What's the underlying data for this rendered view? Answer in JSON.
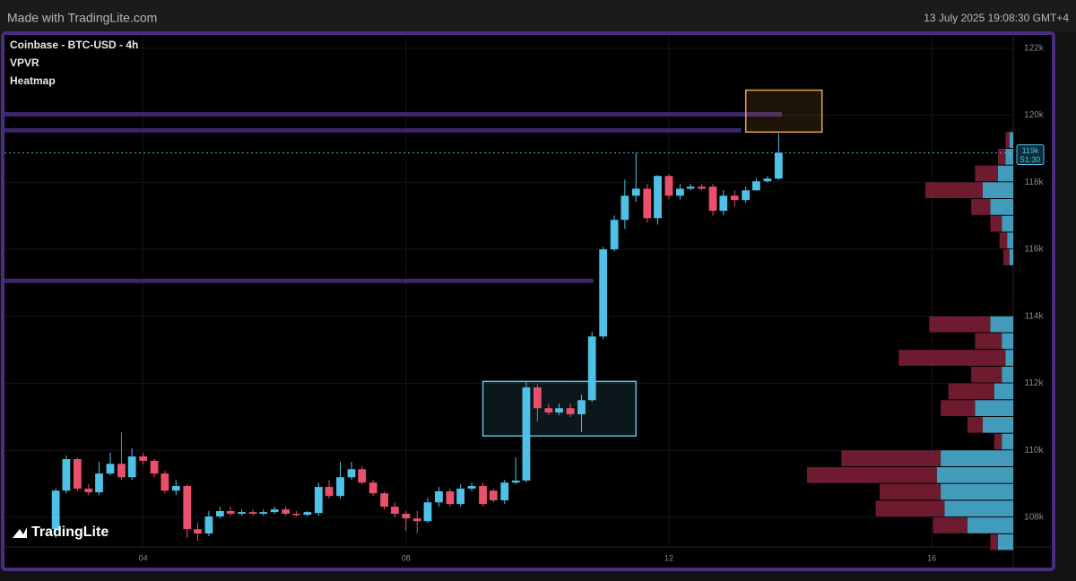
{
  "header": {
    "brand": "Made with TradingLite.com",
    "timestamp": "13 July 2025 19:08:30 GMT+4"
  },
  "chart_data": {
    "type": "candlestick",
    "title": "Coinbase - BTC-USD - 4h",
    "indicators": [
      "VPVR",
      "Heatmap"
    ],
    "watermark": "TradingLite",
    "up_color": "#4fc1e6",
    "down_color": "#ea4f6b",
    "x": [
      2.67,
      2.83,
      3.0,
      3.17,
      3.33,
      3.5,
      3.67,
      3.83,
      4.0,
      4.17,
      4.33,
      4.5,
      4.67,
      4.83,
      5.0,
      5.17,
      5.33,
      5.5,
      5.67,
      5.83,
      6.0,
      6.17,
      6.33,
      6.5,
      6.67,
      6.83,
      7.0,
      7.17,
      7.33,
      7.5,
      7.67,
      7.83,
      8.0,
      8.17,
      8.33,
      8.5,
      8.67,
      8.83,
      9.0,
      9.17,
      9.33,
      9.5,
      9.67,
      9.83,
      10.0,
      10.17,
      10.33,
      10.5,
      10.67,
      10.83,
      11.0,
      11.17,
      11.33,
      11.5,
      11.67,
      11.83,
      12.0,
      12.17,
      12.33,
      12.5,
      12.67,
      12.83,
      13.0,
      13.17,
      13.33,
      13.5,
      13.67
    ],
    "open": [
      107650,
      108800,
      109740,
      108860,
      108750,
      109310,
      109600,
      109200,
      109820,
      109690,
      109310,
      108800,
      108940,
      107650,
      107520,
      108030,
      108190,
      108110,
      108160,
      108110,
      108160,
      108240,
      108110,
      108080,
      108130,
      108910,
      108640,
      109200,
      109440,
      109040,
      108720,
      108320,
      108110,
      107970,
      107890,
      108450,
      108780,
      108400,
      108860,
      108940,
      108800,
      108510,
      109040,
      109100,
      111880,
      111260,
      111130,
      111260,
      111080,
      111500,
      113400,
      116000,
      116880,
      117600,
      117810,
      116930,
      118190,
      117600,
      117810,
      117870,
      117870,
      117150,
      117600,
      117470,
      117760,
      118030,
      118110
    ],
    "high": [
      108860,
      109850,
      109790,
      108990,
      109660,
      109930,
      110540,
      110060,
      109930,
      109740,
      109390,
      109120,
      108990,
      107840,
      108190,
      108320,
      108320,
      108240,
      108240,
      108240,
      108320,
      108320,
      108190,
      108190,
      109040,
      109120,
      109660,
      109660,
      109520,
      109120,
      108770,
      108450,
      108190,
      108190,
      108590,
      108910,
      108860,
      108990,
      109040,
      109040,
      108860,
      109120,
      109790,
      112060,
      111980,
      111400,
      111400,
      111400,
      111660,
      113540,
      116080,
      117010,
      118080,
      118880,
      117950,
      118210,
      118240,
      117950,
      117950,
      117950,
      117950,
      117760,
      117760,
      117870,
      118130,
      118190,
      119470
    ],
    "low": [
      107390,
      108720,
      108780,
      108670,
      108670,
      109260,
      109120,
      109120,
      109580,
      109200,
      108720,
      108670,
      107390,
      107300,
      107440,
      107970,
      108050,
      108050,
      108050,
      108050,
      108110,
      108050,
      108030,
      108030,
      108050,
      108560,
      108560,
      109120,
      108990,
      108640,
      108240,
      108000,
      107600,
      107520,
      107840,
      108320,
      108320,
      108320,
      108780,
      108320,
      108450,
      108400,
      108990,
      109040,
      110860,
      111050,
      111050,
      111000,
      110540,
      111450,
      113320,
      115940,
      116610,
      117410,
      116800,
      116740,
      117490,
      117490,
      117760,
      117760,
      117010,
      117010,
      117280,
      117390,
      117760,
      118000,
      118080
    ],
    "close": [
      108800,
      109740,
      108860,
      108750,
      109310,
      109600,
      109200,
      109820,
      109690,
      109310,
      108800,
      108940,
      107650,
      107520,
      108030,
      108190,
      108110,
      108160,
      108110,
      108160,
      108240,
      108110,
      108080,
      108160,
      108910,
      108640,
      109200,
      109440,
      109040,
      108720,
      108320,
      108110,
      107970,
      107890,
      108450,
      108780,
      108400,
      108860,
      108940,
      108400,
      108510,
      109040,
      109100,
      111880,
      111260,
      111130,
      111260,
      111080,
      111500,
      113400,
      116000,
      116880,
      117600,
      117810,
      116930,
      118190,
      117600,
      117810,
      117870,
      117810,
      117150,
      117600,
      117470,
      117760,
      118030,
      118110,
      118880
    ],
    "current_price_label": "119k",
    "countdown": "51:30",
    "xlim": [
      1.89,
      17.24
    ],
    "xticks": [
      {
        "value": 4,
        "label": "04"
      },
      {
        "value": 8,
        "label": "08"
      },
      {
        "value": 12,
        "label": "12"
      },
      {
        "value": 16,
        "label": "16"
      }
    ],
    "ylim": [
      107120,
      122370
    ],
    "yticks": [
      {
        "value": 108000,
        "label": "108k"
      },
      {
        "value": 110000,
        "label": "110k"
      },
      {
        "value": 112000,
        "label": "112k"
      },
      {
        "value": 114000,
        "label": "114k"
      },
      {
        "value": 116000,
        "label": "116k"
      },
      {
        "value": 118000,
        "label": "118k"
      },
      {
        "value": 120000,
        "label": "120k"
      },
      {
        "value": 122000,
        "label": "122k"
      }
    ],
    "grid": true,
    "zones": [
      {
        "x": [
          9.17,
          11.5
        ],
        "y": [
          110430,
          112060
        ],
        "color": "#5bc0de"
      },
      {
        "x": [
          13.17,
          14.33
        ],
        "y": [
          119500,
          120750
        ],
        "color": "#f0a040"
      }
    ],
    "heatmap_levels": [
      {
        "price": 120030,
        "x_end": 13.72
      },
      {
        "price": 119550,
        "x_end": 13.1
      },
      {
        "price": 115060,
        "x_end": 10.85
      }
    ],
    "volume_profile": {
      "prices": [
        107000,
        107500,
        108000,
        108500,
        109000,
        109500,
        110000,
        110500,
        111000,
        111500,
        112000,
        112500,
        113000,
        113500,
        114000,
        114500,
        115000,
        115500,
        116000,
        116500,
        117000,
        117500,
        118000,
        118500,
        119000
      ],
      "buy": [
        20,
        60,
        90,
        95,
        100,
        95,
        15,
        40,
        50,
        25,
        15,
        10,
        15,
        30,
        0,
        0,
        0,
        5,
        8,
        15,
        30,
        40,
        20,
        10,
        5
      ],
      "sell": [
        10,
        45,
        90,
        80,
        170,
        130,
        10,
        20,
        45,
        60,
        40,
        140,
        35,
        80,
        0,
        0,
        0,
        8,
        10,
        15,
        25,
        75,
        30,
        10,
        5
      ]
    }
  }
}
